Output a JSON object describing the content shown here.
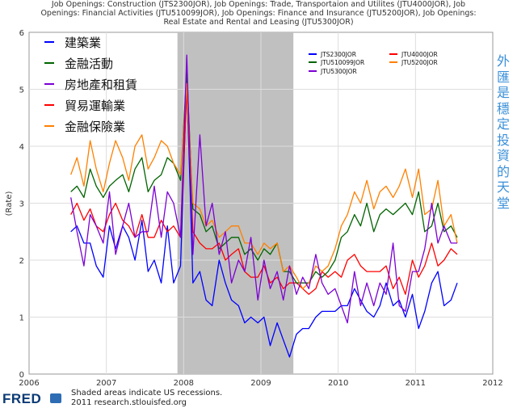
{
  "title_lines": [
    "Job Openings: Construction (JTS2300JOR), Job Openings: Trade, Transportaion and Utilites (JTU4000JOR), Job",
    "Openings: Financial Activities (JTU510099JOR), Job Openings: Finance and Insurance (JTU5200JOR), Job Openings:",
    "Real Estate and Rental and Leasing (JTU5300JOR)"
  ],
  "side_note": [
    "外",
    "匯",
    "是",
    "穩",
    "定",
    "投",
    "資",
    "的",
    "天",
    "堂"
  ],
  "footer": {
    "logo_text": "FRED",
    "line1": "Shaded areas indicate US recessions.",
    "line2": "2011 research.stlouisfed.org"
  },
  "colors": {
    "blue": "#0000ff",
    "green": "#006400",
    "purple": "#7b00d4",
    "red": "#ff0000",
    "orange": "#ff8000",
    "recession": "#c0c0c0"
  },
  "chart_data": {
    "type": "line",
    "ylabel": "(Rate)",
    "xlim": [
      2006,
      2012
    ],
    "ylim": [
      0,
      6
    ],
    "x_ticks": [
      "2006",
      "2007",
      "2008",
      "2009",
      "2010",
      "2011",
      "2012"
    ],
    "y_ticks": [
      "0",
      "1",
      "2",
      "3",
      "4",
      "5",
      "6"
    ],
    "grid": true,
    "recession": [
      2007.92,
      2009.42
    ],
    "x": [
      2006.54,
      2006.62,
      2006.71,
      2006.79,
      2006.87,
      2006.96,
      2007.04,
      2007.12,
      2007.21,
      2007.29,
      2007.37,
      2007.46,
      2007.54,
      2007.62,
      2007.71,
      2007.79,
      2007.87,
      2007.96,
      2008.04,
      2008.12,
      2008.21,
      2008.29,
      2008.37,
      2008.46,
      2008.54,
      2008.62,
      2008.71,
      2008.79,
      2008.87,
      2008.96,
      2009.04,
      2009.12,
      2009.21,
      2009.29,
      2009.37,
      2009.46,
      2009.54,
      2009.62,
      2009.71,
      2009.79,
      2009.87,
      2009.96,
      2010.04,
      2010.12,
      2010.21,
      2010.29,
      2010.37,
      2010.46,
      2010.54,
      2010.62,
      2010.71,
      2010.79,
      2010.87,
      2010.96,
      2011.04,
      2011.12,
      2011.21,
      2011.29,
      2011.37,
      2011.46,
      2011.54
    ],
    "legend_left": [
      {
        "name": "建築業",
        "color": "#0000ff"
      },
      {
        "name": "金融活動",
        "color": "#006400"
      },
      {
        "name": "房地產和租賃",
        "color": "#7b00d4"
      },
      {
        "name": "貿易運輸業",
        "color": "#ff0000"
      },
      {
        "name": "金融保險業",
        "color": "#ff8000"
      }
    ],
    "legend_right": [
      {
        "name": "JTS2300JOR",
        "color": "#0000ff"
      },
      {
        "name": "JTU4000JOR",
        "color": "#ff0000"
      },
      {
        "name": "JTU510099JOR",
        "color": "#006400"
      },
      {
        "name": "JTU5200JOR",
        "color": "#ff8000"
      },
      {
        "name": "JTU5300JOR",
        "color": "#7b00d4"
      }
    ],
    "series": [
      {
        "name": "JTS2300JOR",
        "color": "#0000ff",
        "values": [
          2.5,
          2.6,
          2.3,
          2.3,
          1.9,
          1.7,
          2.6,
          2.2,
          2.6,
          2.4,
          2.0,
          2.7,
          1.8,
          2.0,
          1.6,
          2.6,
          1.6,
          1.9,
          5.2,
          1.6,
          1.8,
          1.3,
          1.2,
          2.0,
          1.6,
          1.3,
          1.2,
          0.9,
          1.0,
          0.9,
          1.0,
          0.5,
          0.9,
          0.6,
          0.3,
          0.7,
          0.8,
          0.8,
          1.0,
          1.1,
          1.1,
          1.1,
          1.2,
          1.2,
          1.5,
          1.3,
          1.1,
          1.0,
          1.2,
          1.6,
          1.2,
          1.3,
          1.0,
          1.4,
          0.8,
          1.1,
          1.6,
          1.8,
          1.2,
          1.3,
          1.6
        ]
      },
      {
        "name": "JTU4000JOR",
        "color": "#ff0000",
        "values": [
          2.8,
          3.0,
          2.7,
          2.9,
          2.6,
          2.5,
          2.8,
          3.0,
          2.7,
          2.6,
          2.4,
          2.8,
          2.4,
          2.4,
          2.7,
          2.5,
          2.6,
          2.4,
          5.0,
          2.5,
          2.3,
          2.2,
          2.2,
          2.3,
          2.0,
          2.1,
          2.2,
          1.8,
          1.7,
          1.7,
          1.9,
          1.6,
          1.7,
          1.5,
          1.6,
          1.6,
          1.5,
          1.4,
          1.5,
          1.8,
          1.7,
          1.8,
          1.7,
          2.0,
          2.1,
          1.9,
          1.8,
          1.8,
          1.8,
          1.9,
          1.5,
          1.7,
          1.4,
          2.0,
          1.7,
          1.9,
          2.3,
          1.9,
          2.0,
          2.2,
          2.1
        ]
      },
      {
        "name": "JTU510099JOR",
        "color": "#006400",
        "values": [
          3.2,
          3.3,
          3.1,
          3.6,
          3.3,
          3.1,
          3.3,
          3.4,
          3.5,
          3.2,
          3.6,
          3.8,
          3.2,
          3.4,
          3.5,
          3.8,
          3.7,
          3.4,
          5.3,
          2.9,
          2.8,
          2.5,
          2.6,
          2.2,
          2.3,
          2.4,
          2.4,
          2.1,
          2.2,
          2.0,
          2.2,
          2.1,
          2.3,
          1.8,
          1.8,
          1.6,
          1.6,
          1.6,
          1.8,
          1.7,
          1.8,
          2.0,
          2.4,
          2.5,
          2.8,
          2.6,
          3.0,
          2.5,
          2.8,
          2.9,
          2.8,
          2.9,
          3.0,
          2.8,
          3.2,
          2.5,
          2.6,
          3.0,
          2.5,
          2.6,
          2.4
        ]
      },
      {
        "name": "JTU5200JOR",
        "color": "#ff8000",
        "values": [
          3.5,
          3.8,
          3.3,
          4.1,
          3.6,
          3.2,
          3.7,
          4.1,
          3.8,
          3.4,
          4.0,
          4.2,
          3.6,
          3.8,
          4.1,
          4.0,
          3.7,
          3.5,
          5.1,
          3.0,
          2.9,
          2.6,
          2.7,
          2.4,
          2.5,
          2.6,
          2.6,
          2.3,
          2.3,
          2.1,
          2.3,
          2.2,
          2.3,
          1.8,
          1.9,
          1.7,
          1.5,
          1.6,
          1.9,
          1.8,
          1.9,
          2.2,
          2.6,
          2.8,
          3.2,
          3.0,
          3.4,
          2.9,
          3.2,
          3.3,
          3.1,
          3.3,
          3.6,
          3.1,
          3.6,
          2.8,
          2.9,
          3.4,
          2.6,
          2.8,
          2.3
        ]
      },
      {
        "name": "JTU5300JOR",
        "color": "#7b00d4",
        "values": [
          3.1,
          2.5,
          1.9,
          2.8,
          2.6,
          2.3,
          3.2,
          2.1,
          2.6,
          3.0,
          2.4,
          2.5,
          2.5,
          3.3,
          2.4,
          3.2,
          3.0,
          2.4,
          5.6,
          2.1,
          4.2,
          2.6,
          3.0,
          2.1,
          2.5,
          1.6,
          2.0,
          1.8,
          2.4,
          1.3,
          2.0,
          1.5,
          1.8,
          1.3,
          1.9,
          1.4,
          1.7,
          1.5,
          2.1,
          1.6,
          1.4,
          1.5,
          1.2,
          0.9,
          1.8,
          1.2,
          1.6,
          1.2,
          1.6,
          1.4,
          2.3,
          1.2,
          1.1,
          1.8,
          1.8,
          2.2,
          3.0,
          2.3,
          2.6,
          2.3,
          2.3
        ]
      }
    ]
  }
}
